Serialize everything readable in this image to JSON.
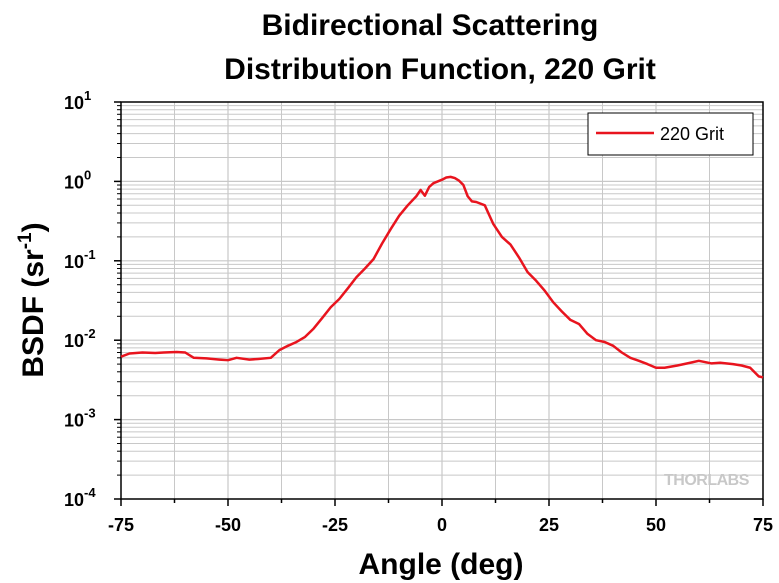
{
  "chart_data": {
    "type": "line",
    "title": [
      "Bidirectional Scattering",
      "Distribution Function, 220 Grit"
    ],
    "xlabel": "Angle (deg)",
    "ylabel_main": "BSDF (sr",
    "ylabel_sup": "-1",
    "ylabel_close": ")",
    "xlim": [
      -75,
      75
    ],
    "ylim": [
      0.0001,
      10
    ],
    "yscale": "log",
    "grid": true,
    "legend_position": "top-right",
    "x_ticks": [
      "-75",
      "-50",
      "-25",
      "0",
      "25",
      "50",
      "75"
    ],
    "y_ticks": [
      {
        "base": "10",
        "exp": "1"
      },
      {
        "base": "10",
        "exp": "0"
      },
      {
        "base": "10",
        "exp": "-1"
      },
      {
        "base": "10",
        "exp": "-2"
      },
      {
        "base": "10",
        "exp": "-3"
      },
      {
        "base": "10",
        "exp": "-4"
      }
    ],
    "series": [
      {
        "name": "220 Grit",
        "color": "#e8141e",
        "x": [
          -75,
          -73,
          -70,
          -67,
          -65,
          -62,
          -60,
          -58,
          -55,
          -52,
          -50,
          -48,
          -45,
          -43,
          -40,
          -38,
          -36,
          -34,
          -32,
          -30,
          -28,
          -26,
          -24,
          -22,
          -20,
          -18,
          -16,
          -14,
          -12,
          -10,
          -8,
          -6,
          -5,
          -4,
          -3,
          -2,
          0,
          1,
          2,
          3,
          4,
          5,
          6,
          7,
          8,
          10,
          11,
          12,
          14,
          16,
          18,
          20,
          22,
          24,
          26,
          28,
          30,
          32,
          34,
          36,
          38,
          40,
          42,
          44,
          46,
          48,
          50,
          52,
          55,
          58,
          60,
          63,
          65,
          68,
          70,
          72,
          74,
          75
        ],
        "y": [
          0.0062,
          0.0068,
          0.007,
          0.0069,
          0.007,
          0.0071,
          0.007,
          0.006,
          0.0059,
          0.0057,
          0.0056,
          0.006,
          0.0057,
          0.0058,
          0.006,
          0.0075,
          0.0085,
          0.0095,
          0.011,
          0.014,
          0.019,
          0.026,
          0.033,
          0.045,
          0.062,
          0.08,
          0.105,
          0.165,
          0.25,
          0.37,
          0.5,
          0.65,
          0.78,
          0.66,
          0.85,
          0.95,
          1.05,
          1.12,
          1.14,
          1.1,
          1.02,
          0.9,
          0.65,
          0.56,
          0.55,
          0.5,
          0.38,
          0.29,
          0.2,
          0.16,
          0.11,
          0.072,
          0.056,
          0.042,
          0.03,
          0.023,
          0.018,
          0.016,
          0.012,
          0.01,
          0.0095,
          0.0085,
          0.007,
          0.006,
          0.0055,
          0.005,
          0.0045,
          0.0045,
          0.0048,
          0.0052,
          0.0055,
          0.0051,
          0.0052,
          0.005,
          0.0048,
          0.0045,
          0.0035,
          0.0034
        ]
      }
    ],
    "watermark": "THORLABS"
  }
}
